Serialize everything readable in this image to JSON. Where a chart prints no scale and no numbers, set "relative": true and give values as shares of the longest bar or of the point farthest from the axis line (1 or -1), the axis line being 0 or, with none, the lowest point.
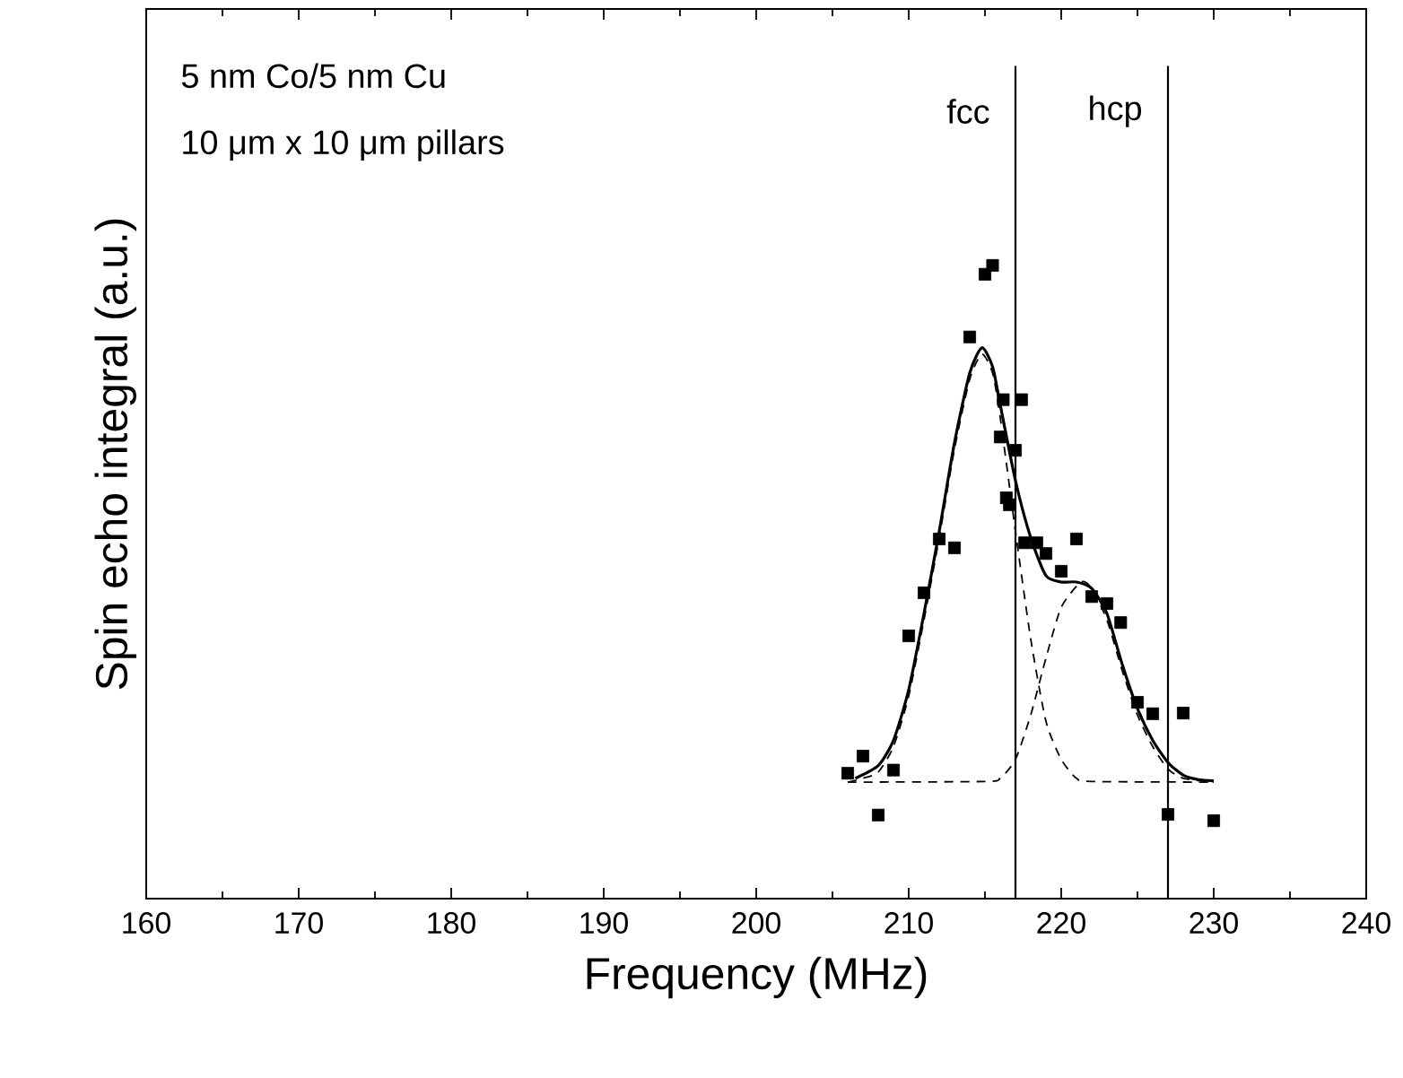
{
  "chart_data": {
    "type": "scatter",
    "xlabel": "Frequency (MHz)",
    "ylabel": "Spin echo integral (a.u.)",
    "relative": true,
    "xlim": [
      160,
      240
    ],
    "xticks": [
      160,
      170,
      180,
      190,
      200,
      210,
      220,
      230,
      240
    ],
    "grid": false,
    "annotations": [
      "5 nm Co/5 nm Cu",
      "10 μm x 10 μm pillars"
    ],
    "ref_lines": [
      {
        "axis": "x",
        "value": 217,
        "label": "fcc",
        "color": "#000000"
      },
      {
        "axis": "x",
        "value": 227,
        "label": "hcp",
        "color": "#000000"
      }
    ],
    "series": [
      {
        "marker": "square",
        "color": "#000000",
        "x": [
          206,
          207,
          208,
          209,
          210,
          211,
          212,
          213,
          214,
          215,
          215.5,
          216.2,
          217.4,
          216,
          217,
          216.4,
          216.6,
          217.6,
          218.4,
          219,
          220,
          221,
          222,
          223,
          223.9,
          225,
          226,
          228,
          227,
          230
        ],
        "values": [
          0.198,
          0.225,
          0.132,
          0.203,
          0.415,
          0.483,
          0.568,
          0.554,
          0.887,
          0.986,
          1.0,
          0.788,
          0.788,
          0.729,
          0.708,
          0.633,
          0.622,
          0.562,
          0.562,
          0.545,
          0.517,
          0.568,
          0.477,
          0.466,
          0.436,
          0.31,
          0.292,
          0.293,
          0.133,
          0.123
        ]
      },
      {
        "type": "line",
        "marker": "none",
        "line_style": "solid",
        "color": "#000000",
        "x": [
          206.5,
          208,
          209,
          210,
          211,
          212,
          213,
          214,
          214.8,
          215.5,
          216,
          217,
          218,
          219,
          220,
          221,
          222,
          223,
          224,
          225,
          226,
          227,
          228,
          229,
          230
        ],
        "values": [
          0.19,
          0.21,
          0.25,
          0.33,
          0.45,
          0.58,
          0.72,
          0.83,
          0.87,
          0.84,
          0.78,
          0.66,
          0.57,
          0.51,
          0.5,
          0.5,
          0.49,
          0.45,
          0.37,
          0.3,
          0.25,
          0.215,
          0.195,
          0.188,
          0.186
        ]
      },
      {
        "type": "line",
        "marker": "none",
        "line_style": "dashed",
        "color": "#000000",
        "x": [
          206,
          207,
          208,
          209,
          210,
          211,
          212,
          213,
          214,
          214.8,
          215.5,
          216,
          217,
          218,
          219,
          220,
          221,
          222,
          230
        ],
        "values": [
          0.184,
          0.19,
          0.2,
          0.24,
          0.32,
          0.44,
          0.57,
          0.71,
          0.82,
          0.86,
          0.83,
          0.76,
          0.58,
          0.41,
          0.28,
          0.22,
          0.19,
          0.185,
          0.184
        ]
      },
      {
        "type": "line",
        "marker": "none",
        "line_style": "dashed",
        "color": "#000000",
        "x": [
          206,
          215,
          216,
          217,
          218,
          219,
          220,
          221.3,
          222,
          223,
          224,
          225,
          226,
          227,
          228,
          230
        ],
        "values": [
          0.184,
          0.185,
          0.19,
          0.22,
          0.29,
          0.38,
          0.46,
          0.5,
          0.49,
          0.44,
          0.36,
          0.29,
          0.24,
          0.205,
          0.19,
          0.184
        ]
      }
    ]
  }
}
